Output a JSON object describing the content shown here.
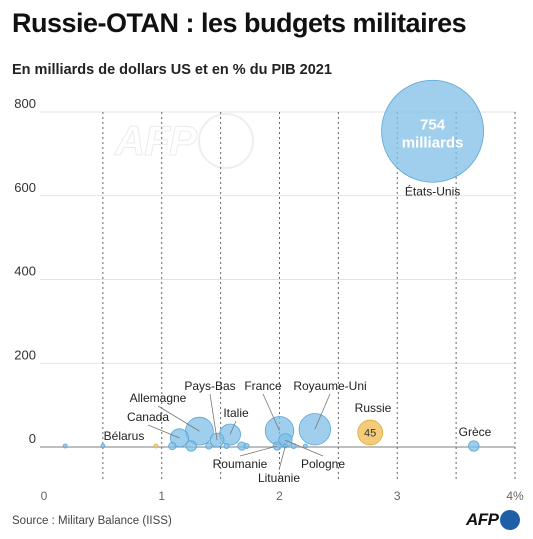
{
  "title": "Russie-OTAN : les budgets militaires",
  "subtitle": "En milliards de dollars US et en % du PIB 2021",
  "source": "Source : Military Balance (IISS)",
  "logo_text": "AFP",
  "colors": {
    "nato": "#7fbfe6",
    "nato_stroke": "#5aa6d6",
    "russia": "#f3c76a",
    "russia_stroke": "#e0a93a",
    "belarus": "#f5d07e",
    "grid": "#666666",
    "axis": "#999999",
    "logo_blue": "#1e5fa8"
  },
  "chart_data": {
    "type": "scatter",
    "title": "Russie-OTAN : les budgets militaires",
    "subtitle": "En milliards de dollars US et en % du PIB 2021",
    "xlabel": "",
    "ylabel": "",
    "xlim": [
      0,
      4
    ],
    "ylim": [
      -50,
      800
    ],
    "x_ticks": [
      {
        "value": 0,
        "label": "0"
      },
      {
        "value": 1,
        "label": "1"
      },
      {
        "value": 2,
        "label": "2"
      },
      {
        "value": 3,
        "label": "3"
      },
      {
        "value": 4,
        "label": "4%"
      }
    ],
    "y_ticks": [
      {
        "value": 0,
        "label": "0"
      },
      {
        "value": 200,
        "label": "200"
      },
      {
        "value": 400,
        "label": "400"
      },
      {
        "value": 600,
        "label": "600"
      },
      {
        "value": 800,
        "label": "800"
      }
    ],
    "grid": true,
    "bubble_size": "budget",
    "points": [
      {
        "name": "États-Unis",
        "x": 3.3,
        "y": 754,
        "label": "États-Unis",
        "value_label": "754\nmilliards",
        "group": "nato"
      },
      {
        "name": "Royaume-Uni",
        "x": 2.3,
        "y": 72,
        "label": "Royaume-Uni",
        "group": "nato"
      },
      {
        "name": "France",
        "x": 2.0,
        "y": 59,
        "label": "France",
        "group": "nato"
      },
      {
        "name": "Allemagne",
        "x": 1.32,
        "y": 56,
        "label": "Allemagne",
        "group": "nato"
      },
      {
        "name": "Italie",
        "x": 1.58,
        "y": 32,
        "label": "Italie",
        "group": "nato"
      },
      {
        "name": "Canada",
        "x": 1.15,
        "y": 24,
        "label": "Canada",
        "group": "nato"
      },
      {
        "name": "Pays-Bas",
        "x": 1.47,
        "y": 14,
        "label": "Pays-Bas",
        "group": "nato"
      },
      {
        "name": "Pologne",
        "x": 2.05,
        "y": 13,
        "label": "Pologne",
        "group": "nato"
      },
      {
        "name": "Roumanie",
        "x": 1.98,
        "y": 5,
        "label": "Roumanie",
        "group": "nato"
      },
      {
        "name": "Lituanie",
        "x": 2.05,
        "y": 1,
        "label": "Lituanie",
        "group": "nato"
      },
      {
        "name": "Grèce",
        "x": 3.65,
        "y": 8,
        "label": "Grèce",
        "group": "nato"
      },
      {
        "name": "Russie",
        "x": 2.77,
        "y": 45,
        "label": "Russie",
        "value_label": "45",
        "group": "russia"
      },
      {
        "name": "Bélarus",
        "x": 0.95,
        "y": 1,
        "label": "Bélarus",
        "group": "belarus"
      },
      {
        "name": "",
        "x": 1.25,
        "y": 8,
        "label": "",
        "group": "nato"
      },
      {
        "name": "",
        "x": 1.09,
        "y": 4,
        "label": "",
        "group": "nato"
      },
      {
        "name": "",
        "x": 1.68,
        "y": 5,
        "label": "",
        "group": "nato"
      },
      {
        "name": "",
        "x": 1.72,
        "y": 2,
        "label": "",
        "group": "nato"
      },
      {
        "name": "",
        "x": 1.4,
        "y": 3,
        "label": "",
        "group": "nato"
      },
      {
        "name": "",
        "x": 1.55,
        "y": 2,
        "label": "",
        "group": "nato"
      },
      {
        "name": "",
        "x": 0.5,
        "y": 1,
        "label": "",
        "group": "nato"
      },
      {
        "name": "",
        "x": 0.18,
        "y": 1,
        "label": "",
        "group": "nato"
      },
      {
        "name": "",
        "x": 2.12,
        "y": 2,
        "label": "",
        "group": "nato"
      },
      {
        "name": "",
        "x": 2.22,
        "y": 1,
        "label": "",
        "group": "nato"
      }
    ]
  }
}
